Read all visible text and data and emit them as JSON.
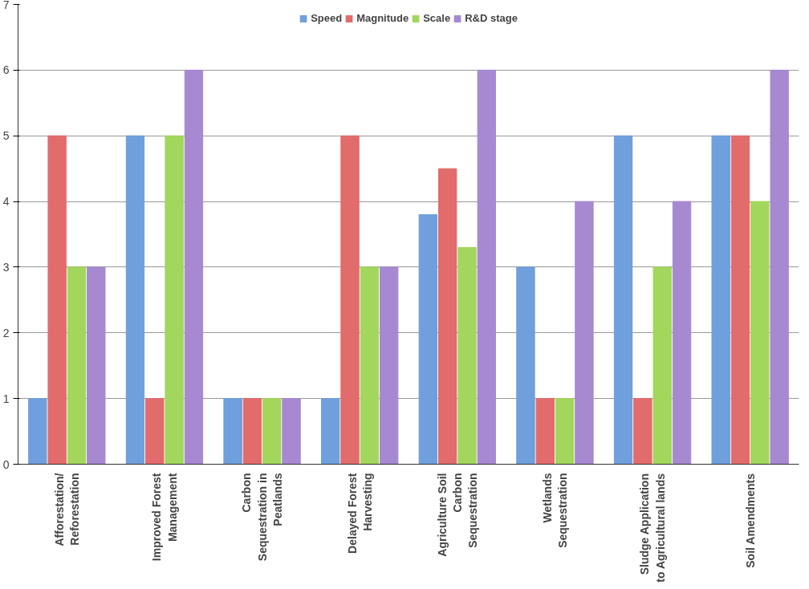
{
  "chart_data": {
    "type": "bar",
    "categories": [
      "Afforestation/\nReforestation",
      "Improved Forest\nManagement",
      "Carbon\nSequestration in\nPeatlands",
      "Delayed Forest\nHarvesting",
      "Agriculture Soil\nCarbon\nSequestration",
      "Wetlands\nSequestration",
      "Sludge Application\nto Agricultural lands",
      "Soil Amendments"
    ],
    "series": [
      {
        "name": "Speed",
        "color": "#6f9fdc",
        "values": [
          1,
          5,
          1,
          1,
          3.8,
          3,
          5,
          5
        ]
      },
      {
        "name": "Magnitude",
        "color": "#e26b6b",
        "values": [
          5,
          1,
          1,
          5,
          4.5,
          1,
          1,
          5
        ]
      },
      {
        "name": "Scale",
        "color": "#a3d65c",
        "values": [
          3,
          5,
          1,
          3,
          3.3,
          1,
          3,
          4
        ]
      },
      {
        "name": "R&D stage",
        "color": "#a689d1",
        "values": [
          3,
          6,
          1,
          3,
          6,
          4,
          4,
          6
        ]
      }
    ],
    "ylim": [
      0,
      7
    ],
    "yticks": [
      0,
      1,
      2,
      3,
      4,
      5,
      6,
      7
    ],
    "grid": "y",
    "legend": "top"
  }
}
